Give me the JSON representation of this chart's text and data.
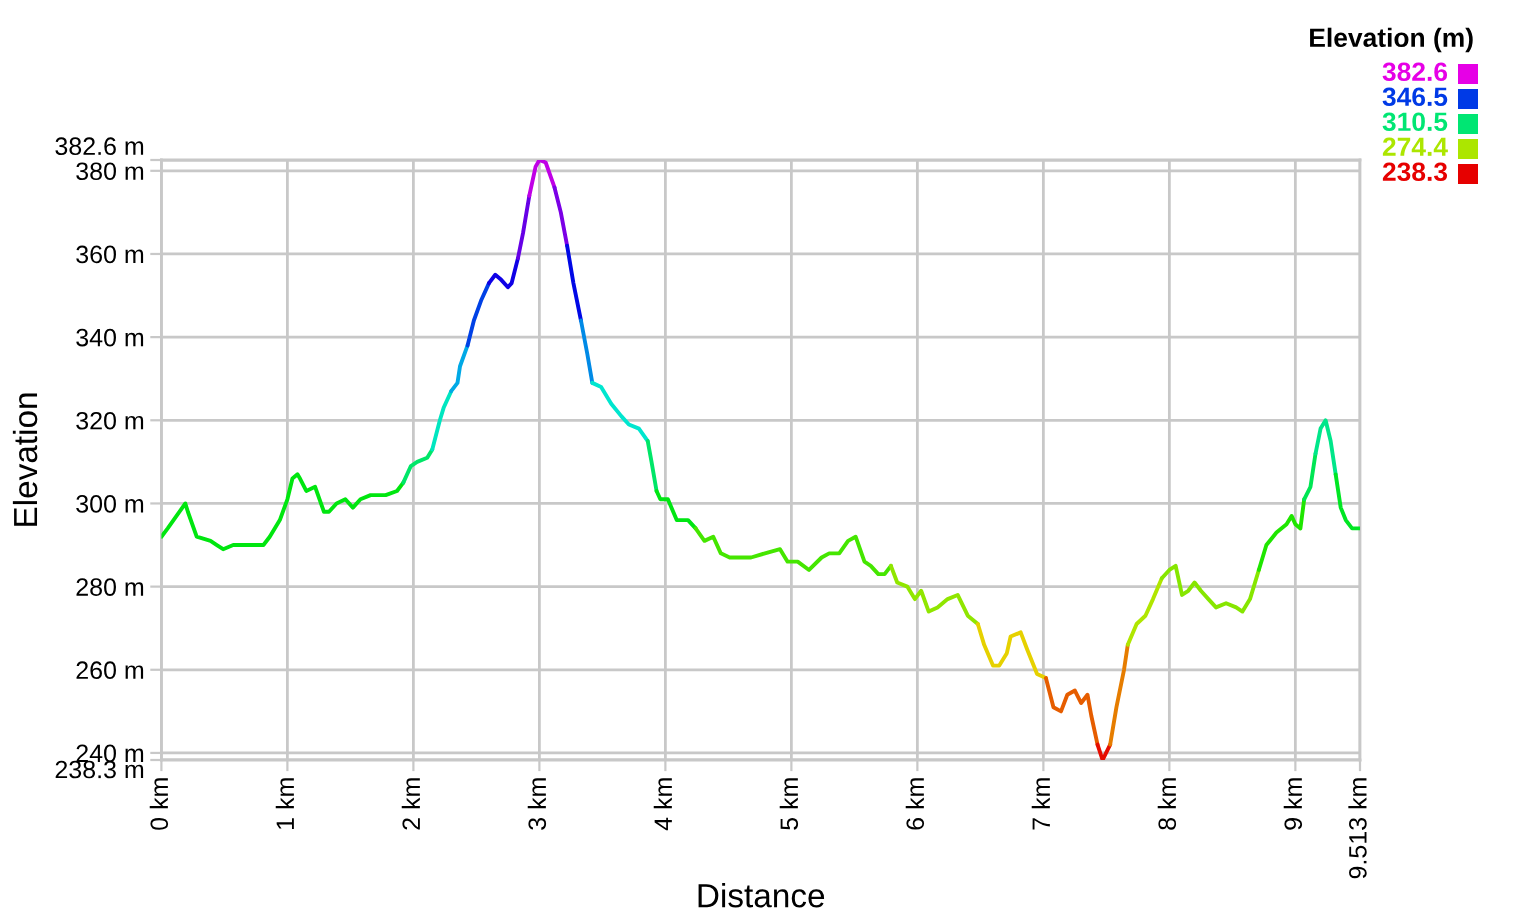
{
  "chart_data": {
    "type": "line",
    "xlabel": "Distance",
    "ylabel": "Elevation",
    "clabel": "Elevation (m)",
    "cticks": [
      238.3,
      274.4,
      310.5,
      346.5,
      382.6
    ],
    "xlim": [
      0,
      9.513
    ],
    "xticks": [
      {
        "value": 0,
        "label": "0 km"
      },
      {
        "value": 1,
        "label": "1 km"
      },
      {
        "value": 2,
        "label": "2 km"
      },
      {
        "value": 3,
        "label": "3 km"
      },
      {
        "value": 4,
        "label": "4 km"
      },
      {
        "value": 5,
        "label": "5 km"
      },
      {
        "value": 6,
        "label": "6 km"
      },
      {
        "value": 7,
        "label": "7 km"
      },
      {
        "value": 8,
        "label": "8 km"
      },
      {
        "value": 9,
        "label": "9 km"
      },
      {
        "value": 9.513,
        "label": "9.513 km"
      }
    ],
    "ylim": [
      238.3,
      382.6
    ],
    "yticks": [
      {
        "value": 238.3,
        "label": "238.3 m"
      },
      {
        "value": 240,
        "label": "240 m"
      },
      {
        "value": 260,
        "label": "260 m"
      },
      {
        "value": 280,
        "label": "280 m"
      },
      {
        "value": 300,
        "label": "300 m"
      },
      {
        "value": 320,
        "label": "320 m"
      },
      {
        "value": 340,
        "label": "340 m"
      },
      {
        "value": 360,
        "label": "360 m"
      },
      {
        "value": 380,
        "label": "380 m"
      },
      {
        "value": 382.6,
        "label": "382.6 m"
      }
    ],
    "grid": true,
    "series": [
      {
        "color": "#00e60f",
        "x": [
          0,
          0.05,
          0.12,
          0.19,
          0.21,
          0.28,
          0.39,
          0.44,
          0.49,
          0.57,
          0.81,
          0.86,
          0.94,
          1.0,
          1.04,
          1.08,
          1.1,
          1.15,
          1.22,
          1.29,
          1.33,
          1.39,
          1.46,
          1.52,
          1.58,
          1.66,
          1.74,
          1.78,
          1.87,
          1.92
        ],
        "values": [
          292,
          294,
          297,
          300,
          298,
          292,
          291,
          290,
          289,
          290,
          290,
          292,
          296,
          301,
          306,
          307,
          306,
          303,
          304,
          298,
          298,
          300,
          301,
          299,
          301,
          302,
          302,
          302,
          303,
          305
        ]
      },
      {
        "color": "#00e668",
        "x": [
          1.92,
          1.98,
          2.03,
          2.11,
          2.15
        ],
        "values": [
          305,
          309,
          310,
          311,
          313
        ]
      },
      {
        "color": "#00e6c0",
        "x": [
          2.15,
          2.21,
          2.24,
          2.3
        ],
        "values": [
          313,
          320,
          323,
          327
        ]
      },
      {
        "color": "#00a9e6",
        "x": [
          2.3,
          2.35,
          2.37,
          2.43
        ],
        "values": [
          327,
          329,
          333,
          338
        ]
      },
      {
        "color": "#0041e6",
        "x": [
          2.43,
          2.48,
          2.54,
          2.6
        ],
        "values": [
          338,
          344,
          349,
          353
        ]
      },
      {
        "color": "#0f00e6",
        "x": [
          2.6,
          2.65,
          2.69,
          2.75,
          2.78,
          2.83
        ],
        "values": [
          353,
          355,
          354,
          352,
          353,
          359
        ]
      },
      {
        "color": "#6600e6",
        "x": [
          2.83,
          2.87,
          2.92
        ],
        "values": [
          359,
          365,
          374
        ]
      },
      {
        "color": "#c000e6",
        "x": [
          2.92,
          2.97,
          3.0,
          3.05,
          3.12
        ],
        "values": [
          374,
          381,
          382.6,
          382,
          376
        ]
      },
      {
        "color": "#7b00e6",
        "x": [
          3.12,
          3.17,
          3.22
        ],
        "values": [
          376,
          370,
          362
        ]
      },
      {
        "color": "#0008e6",
        "x": [
          3.22,
          3.27,
          3.33
        ],
        "values": [
          362,
          353,
          344
        ]
      },
      {
        "color": "#008ae6",
        "x": [
          3.33,
          3.38,
          3.42
        ],
        "values": [
          344,
          336,
          329
        ]
      },
      {
        "color": "#00e6cf",
        "x": [
          3.42,
          3.49,
          3.57,
          3.65,
          3.71,
          3.79,
          3.86
        ],
        "values": [
          329,
          328,
          324,
          321,
          319,
          318,
          315
        ]
      },
      {
        "color": "#00e668",
        "x": [
          3.86,
          3.89,
          3.93
        ],
        "values": [
          315,
          310,
          303
        ]
      },
      {
        "color": "#00e613",
        "x": [
          3.93,
          3.96,
          4.02,
          4.09,
          4.18,
          4.24
        ],
        "values": [
          303,
          301,
          301,
          296,
          296,
          294
        ]
      },
      {
        "color": "#45e600",
        "x": [
          4.24,
          4.31,
          4.38,
          4.44,
          4.51,
          4.6,
          4.68,
          4.79,
          4.91,
          4.97,
          5.05,
          5.14,
          5.24,
          5.3,
          5.38,
          5.45,
          5.51,
          5.58,
          5.63,
          5.69,
          5.74,
          5.79
        ],
        "values": [
          294,
          291,
          292,
          288,
          287,
          287,
          287,
          288,
          289,
          286,
          286,
          284,
          287,
          288,
          288,
          291,
          292,
          286,
          285,
          283,
          283,
          285
        ]
      },
      {
        "color": "#90e600",
        "x": [
          5.79,
          5.84,
          5.92,
          5.98,
          6.03,
          6.09,
          6.16,
          6.24,
          6.32,
          6.4,
          6.48
        ],
        "values": [
          285,
          281,
          280,
          277,
          279,
          274,
          275,
          277,
          278,
          273,
          271
        ]
      },
      {
        "color": "#e6d100",
        "x": [
          6.48,
          6.53,
          6.6,
          6.65,
          6.71,
          6.74,
          6.82,
          6.87,
          6.95,
          7.02
        ],
        "values": [
          271,
          266,
          261,
          261,
          264,
          268,
          269,
          265,
          259,
          258
        ]
      },
      {
        "color": "#e65d00",
        "x": [
          7.02,
          7.08,
          7.14,
          7.19,
          7.25,
          7.3,
          7.35,
          7.38,
          7.43
        ],
        "values": [
          258,
          251,
          250,
          254,
          255,
          252,
          254,
          249,
          242
        ]
      },
      {
        "color": "#e60d00",
        "x": [
          7.43,
          7.47,
          7.53
        ],
        "values": [
          242,
          238.3,
          242
        ]
      },
      {
        "color": "#e67d00",
        "x": [
          7.53,
          7.58,
          7.64,
          7.67
        ],
        "values": [
          242,
          251,
          260,
          266
        ]
      },
      {
        "color": "#b0e600",
        "x": [
          7.67,
          7.74,
          7.81,
          7.87,
          7.94
        ],
        "values": [
          266,
          271,
          273,
          277,
          282
        ]
      },
      {
        "color": "#86e600",
        "x": [
          7.94,
          8.0,
          8.05,
          8.1,
          8.15,
          8.2,
          8.25,
          8.31,
          8.37,
          8.45,
          8.53,
          8.58,
          8.64,
          8.71
        ],
        "values": [
          282,
          284,
          285,
          278,
          279,
          281,
          279,
          277,
          275,
          276,
          275,
          274,
          277,
          284
        ]
      },
      {
        "color": "#1fe600",
        "x": [
          8.71,
          8.77,
          8.85,
          8.93,
          8.97,
          9.0,
          9.04,
          9.07
        ],
        "values": [
          284,
          290,
          293,
          295,
          297,
          295,
          294,
          301
        ]
      },
      {
        "color": "#00e654",
        "x": [
          9.07,
          9.12,
          9.16
        ],
        "values": [
          301,
          304,
          312
        ]
      },
      {
        "color": "#00e68a",
        "x": [
          9.16,
          9.2,
          9.24,
          9.28,
          9.32
        ],
        "values": [
          312,
          318,
          320,
          315,
          307
        ]
      },
      {
        "color": "#00e623",
        "x": [
          9.32,
          9.36,
          9.4,
          9.45,
          9.513
        ],
        "values": [
          307,
          299,
          296,
          294,
          294
        ]
      }
    ]
  }
}
